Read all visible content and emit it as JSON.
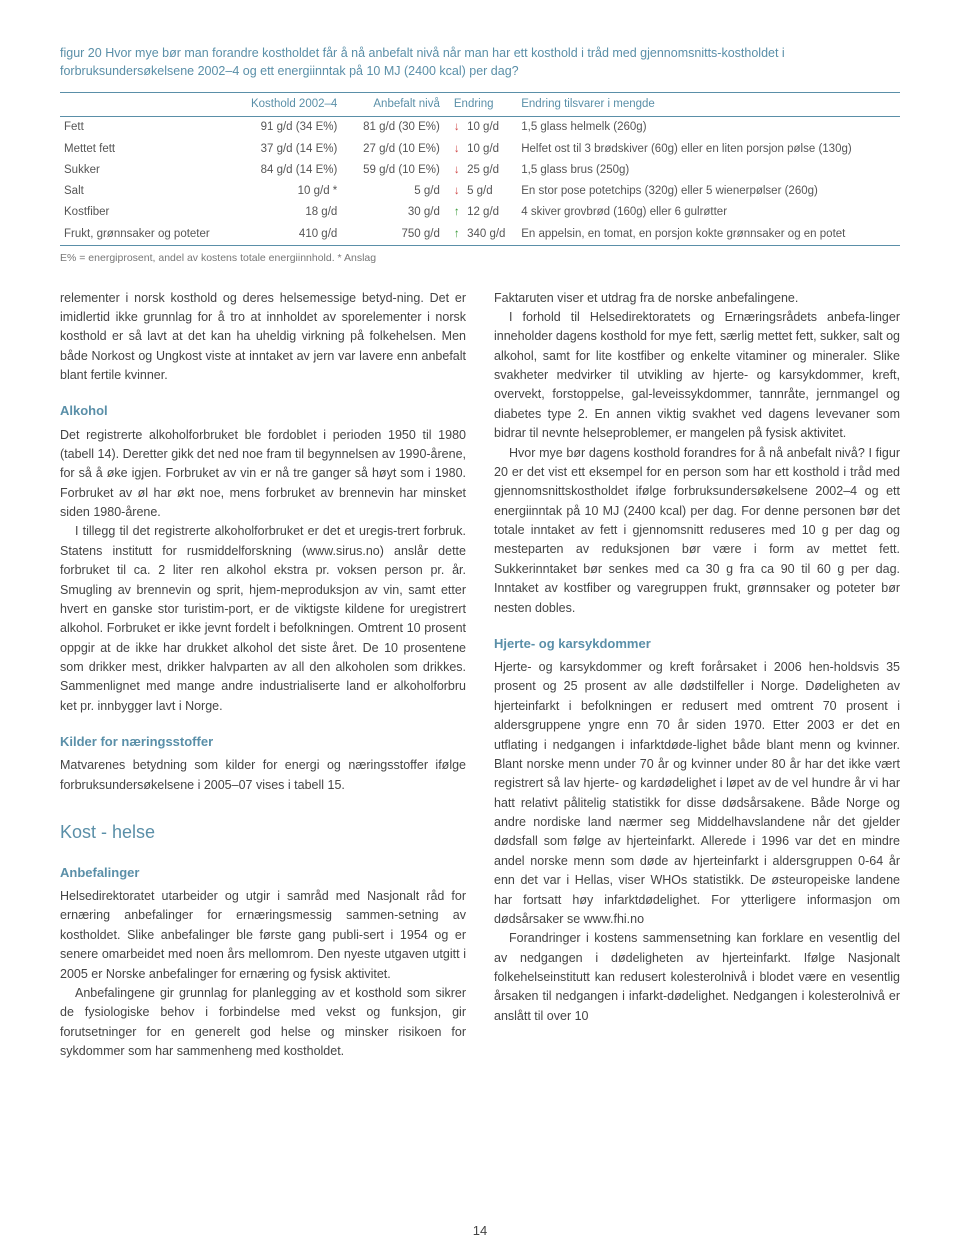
{
  "figure": {
    "label": "figur 20",
    "caption": "Hvor mye bør man forandre kostholdet får å nå anbefalt nivå når man har ett kosthold i tråd med gjennomsnitts-kostholdet i forbruksundersøkelsene 2002–4 og ett energiinntak på 10 MJ (2400 kcal) per dag?"
  },
  "table": {
    "headers": {
      "c0": "",
      "c1": "Kosthold 2002–4",
      "c2": "Anbefalt nivå",
      "c3": "Endring",
      "c4": "Endring tilsvarer i mengde"
    },
    "rows": [
      {
        "label": "Fett",
        "a": "91 g/d (34 E%)",
        "b": "81 g/d (30 E%)",
        "dir": "down",
        "chg": "10 g/d",
        "desc": "1,5 glass helmelk (260g)"
      },
      {
        "label": "Mettet fett",
        "a": "37 g/d (14 E%)",
        "b": "27 g/d (10 E%)",
        "dir": "down",
        "chg": "10 g/d",
        "desc": "Helfet ost til 3 brødskiver (60g) eller en liten porsjon pølse (130g)"
      },
      {
        "label": "Sukker",
        "a": "84 g/d (14 E%)",
        "b": "59 g/d (10 E%)",
        "dir": "down",
        "chg": "25 g/d",
        "desc": "1,5 glass brus (250g)"
      },
      {
        "label": "Salt",
        "a": "10 g/d *",
        "b": "5 g/d",
        "dir": "down",
        "chg": "5 g/d",
        "desc": "En stor pose potetchips (320g) eller 5 wienerpølser (260g)"
      },
      {
        "label": "Kostfiber",
        "a": "18 g/d",
        "b": "30 g/d",
        "dir": "up",
        "chg": "12 g/d",
        "desc": "4 skiver grovbrød (160g) eller 6 gulrøtter"
      },
      {
        "label": "Frukt, grønnsaker og poteter",
        "a": "410 g/d",
        "b": "750 g/d",
        "dir": "up",
        "chg": "340 g/d",
        "desc": "En appelsin, en tomat, en porsjon kokte grønnsaker og en potet"
      }
    ],
    "footnote": "E% = energiprosent, andel av kostens totale energiinnhold. * Anslag"
  },
  "left": {
    "p1": "relementer i norsk kosthold og deres helsemessige betyd-ning. Det er imidlertid ikke grunnlag for å tro at innholdet av sporelementer i norsk kosthold er så lavt at det kan ha uheldig virkning på folkehelsen. Men både Norkost og Ungkost viste at inntaket av jern var lavere enn anbefalt blant fertile kvinner.",
    "h_alkohol": "Alkohol",
    "p2": "Det registrerte alkoholforbruket ble fordoblet i perioden 1950 til 1980 (tabell 14). Deretter gikk det ned noe fram til begynnelsen av 1990-årene, for så å øke igjen. Forbruket av vin er nå tre ganger så høyt som i 1980. Forbruket av øl har økt noe, mens forbruket av brennevin har minsket siden 1980-årene.",
    "p3": "I tillegg til det registrerte alkoholforbruket er det et uregis-trert forbruk. Statens institutt for rusmiddelforskning (www.sirus.no) anslår dette forbruket til ca. 2 liter ren alkohol ekstra pr. voksen person pr. år. Smugling av brennevin og sprit, hjem-meproduksjon av vin, samt etter hvert en ganske stor turistim-port, er de viktigste kildene for uregistrert alkohol. Forbruket er ikke jevnt fordelt i befolkningen. Omtrent 10 prosent oppgir at de ikke har drukket alkohol det siste året. De 10 prosentene som drikker mest, drikker halvparten av all den alkoholen som drikkes. Sammenlignet med mange andre industrialiserte land er alkoholforbru ket pr. innbygger lavt i Norge.",
    "h_kilder": "Kilder for næringsstoffer",
    "p4": "Matvarenes betydning som kilder for energi og næringsstoffer ifølge forbruksundersøkelsene i 2005–07 vises i tabell 15.",
    "h_kost": "Kost - helse",
    "h_anbefalinger": "Anbefalinger",
    "p5": "Helsedirektoratet utarbeider og utgir i samråd med Nasjonalt råd for ernæring anbefalinger for ernæringsmessig sammen-setning av kostholdet. Slike anbefalinger ble første gang publi-sert i 1954 og er senere omarbeidet med noen års mellomrom. Den nyeste utgaven utgitt i 2005 er Norske anbefalinger for ernæring og fysisk aktivitet.",
    "p6": "Anbefalingene gir grunnlag for planlegging av et kosthold som sikrer de fysiologiske behov i forbindelse med vekst og funksjon, gir forutsetninger for en generelt god helse og minsker risikoen for sykdommer som har sammenheng med kostholdet."
  },
  "right": {
    "p1": "Faktaruten viser et utdrag fra de norske anbefalingene.",
    "p2": "I forhold til Helsedirektoratets og Ernæringsrådets anbefa-linger inneholder dagens kosthold for mye fett, særlig mettet fett, sukker, salt og alkohol, samt for lite kostfiber og enkelte vitaminer og mineraler. Slike svakheter medvirker til utvikling av hjerte- og karsykdommer, kreft, overvekt, forstoppelse, gal-leveissykdommer, tannråte, jernmangel og diabetes type 2. En annen viktig svakhet ved dagens levevaner som bidrar til nevnte helseproblemer, er mangelen på fysisk aktivitet.",
    "p3": "Hvor mye bør dagens kosthold forandres for å nå anbefalt nivå? I figur 20 er det vist ett eksempel for en person som har ett kosthold i tråd med gjennomsnittskostholdet ifølge forbruksundersøkelsene 2002–4 og ett energiinntak på 10 MJ (2400 kcal) per dag. For denne personen bør det totale inntaket av fett i gjennomsnitt reduseres med 10 g per dag og mesteparten av reduksjonen bør være i form av mettet fett. Sukkerinntaket bør senkes med ca 30 g fra ca 90 til 60 g per dag. Inntaket av kostfiber og varegruppen frukt, grønnsaker og poteter bør nesten dobles.",
    "h_hjerte": "Hjerte- og karsykdommer",
    "p4": "Hjerte- og karsykdommer og kreft forårsaket i 2006 hen-holdsvis 35 prosent og 25 prosent av alle dødstilfeller i Norge. Dødeligheten av hjerteinfarkt i befolkningen er redusert med omtrent 70 prosent i aldersgruppene yngre enn 70 år siden 1970. Etter 2003 er det en utflating i nedgangen i infarktdøde-lighet både blant menn og kvinner. Blant norske menn under 70 år og kvinner under 80 år har det ikke vært registrert så lav hjerte- og kardødelighet i løpet av de vel hundre år vi har hatt relativt pålitelig statistikk for disse dødsårsakene. Både Norge og andre nordiske land nærmer seg Middelhavslandene når det gjelder dødsfall som følge av hjerteinfarkt. Allerede i 1996 var det en mindre andel norske menn som døde av hjerteinfarkt i aldersgruppen 0-64 år enn det var i Hellas, viser WHOs statistikk. De østeuropeiske landene har fortsatt høy infarktdødelighet. For ytterligere informasjon om dødsårsaker se www.fhi.no",
    "p5": "Forandringer i kostens sammensetning kan forklare en vesentlig del av nedgangen i dødeligheten av hjerteinfarkt. Ifølge Nasjonalt folkehelseinstitutt kan redusert kolesterolnivå i blodet være en vesentlig årsaken til nedgangen i infarkt-dødelighet. Nedgangen i kolesterolnivå er anslått til over 10"
  },
  "page_number": "14"
}
